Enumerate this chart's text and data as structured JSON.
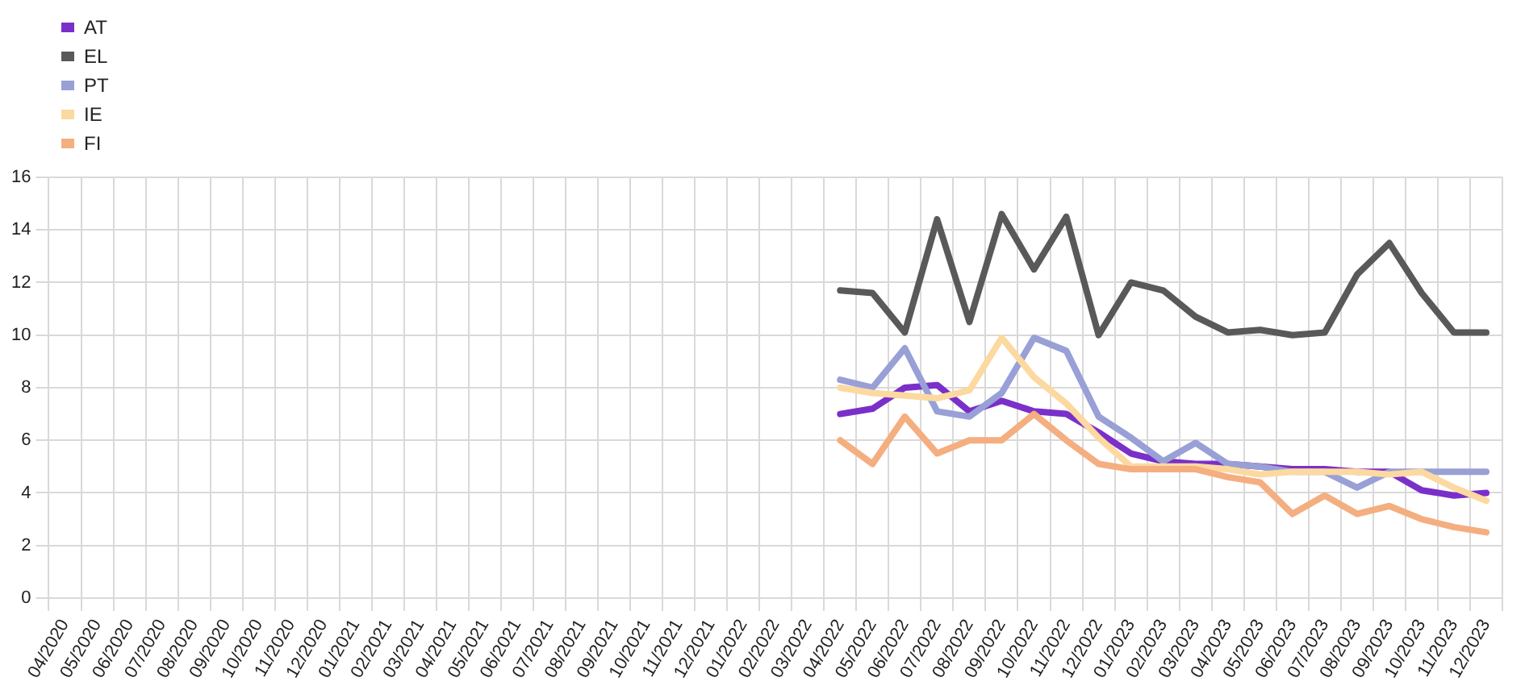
{
  "chart_data": {
    "type": "line",
    "categories": [
      "04/2020",
      "05/2020",
      "06/2020",
      "07/2020",
      "08/2020",
      "09/2020",
      "10/2020",
      "11/2020",
      "12/2020",
      "01/2021",
      "02/2021",
      "03/2021",
      "04/2021",
      "05/2021",
      "06/2021",
      "07/2021",
      "08/2021",
      "09/2021",
      "10/2021",
      "11/2021",
      "12/2021",
      "01/2022",
      "02/2022",
      "03/2022",
      "04/2022",
      "05/2022",
      "06/2022",
      "07/2022",
      "08/2022",
      "09/2022",
      "10/2022",
      "11/2022",
      "12/2022",
      "01/2023",
      "02/2023",
      "03/2023",
      "04/2023",
      "05/2023",
      "06/2023",
      "07/2023",
      "08/2023",
      "09/2023",
      "10/2023",
      "11/2023",
      "12/2023"
    ],
    "series": [
      {
        "name": "AT",
        "color": "#7b2fc9",
        "values": [
          null,
          null,
          null,
          null,
          null,
          null,
          null,
          null,
          null,
          null,
          null,
          null,
          null,
          null,
          null,
          null,
          null,
          null,
          null,
          null,
          null,
          null,
          null,
          null,
          7.0,
          7.2,
          8.0,
          8.1,
          7.1,
          7.5,
          7.1,
          7.0,
          6.3,
          5.5,
          5.2,
          5.1,
          5.1,
          5.0,
          4.9,
          4.9,
          4.8,
          4.8,
          4.1,
          3.9,
          4.0
        ]
      },
      {
        "name": "EL",
        "color": "#595959",
        "values": [
          null,
          null,
          null,
          null,
          null,
          null,
          null,
          null,
          null,
          null,
          null,
          null,
          null,
          null,
          null,
          null,
          null,
          null,
          null,
          null,
          null,
          null,
          null,
          null,
          11.7,
          11.6,
          10.1,
          14.4,
          10.5,
          14.6,
          12.5,
          14.5,
          10.0,
          12.0,
          11.7,
          10.7,
          10.1,
          10.2,
          10.0,
          10.1,
          12.3,
          13.5,
          11.6,
          10.1,
          10.1
        ]
      },
      {
        "name": "PT",
        "color": "#98a0d6",
        "values": [
          null,
          null,
          null,
          null,
          null,
          null,
          null,
          null,
          null,
          null,
          null,
          null,
          null,
          null,
          null,
          null,
          null,
          null,
          null,
          null,
          null,
          null,
          null,
          null,
          8.3,
          8.0,
          9.5,
          7.1,
          6.9,
          7.8,
          9.9,
          9.4,
          6.9,
          6.1,
          5.2,
          5.9,
          5.1,
          5.0,
          4.8,
          4.8,
          4.2,
          4.8,
          4.8,
          4.8,
          4.8
        ]
      },
      {
        "name": "IE",
        "color": "#fcd9a0",
        "values": [
          null,
          null,
          null,
          null,
          null,
          null,
          null,
          null,
          null,
          null,
          null,
          null,
          null,
          null,
          null,
          null,
          null,
          null,
          null,
          null,
          null,
          null,
          null,
          null,
          8.0,
          7.8,
          7.7,
          7.6,
          7.9,
          9.9,
          8.4,
          7.4,
          6.1,
          5.0,
          5.0,
          5.0,
          4.9,
          4.7,
          4.8,
          4.8,
          4.8,
          4.7,
          4.8,
          4.2,
          3.7
        ]
      },
      {
        "name": "FI",
        "color": "#f4ae80",
        "values": [
          null,
          null,
          null,
          null,
          null,
          null,
          null,
          null,
          null,
          null,
          null,
          null,
          null,
          null,
          null,
          null,
          null,
          null,
          null,
          null,
          null,
          null,
          null,
          null,
          6.0,
          5.1,
          6.9,
          5.5,
          6.0,
          6.0,
          7.0,
          6.0,
          5.1,
          4.9,
          4.9,
          4.9,
          4.6,
          4.4,
          3.2,
          3.9,
          3.2,
          3.5,
          3.0,
          2.7,
          2.5
        ]
      }
    ],
    "ylim": [
      0,
      16
    ],
    "yticks": [
      0,
      2,
      4,
      6,
      8,
      10,
      12,
      14,
      16
    ],
    "grid": true,
    "legend": "top left",
    "marker": "none",
    "line_style": "solid"
  }
}
